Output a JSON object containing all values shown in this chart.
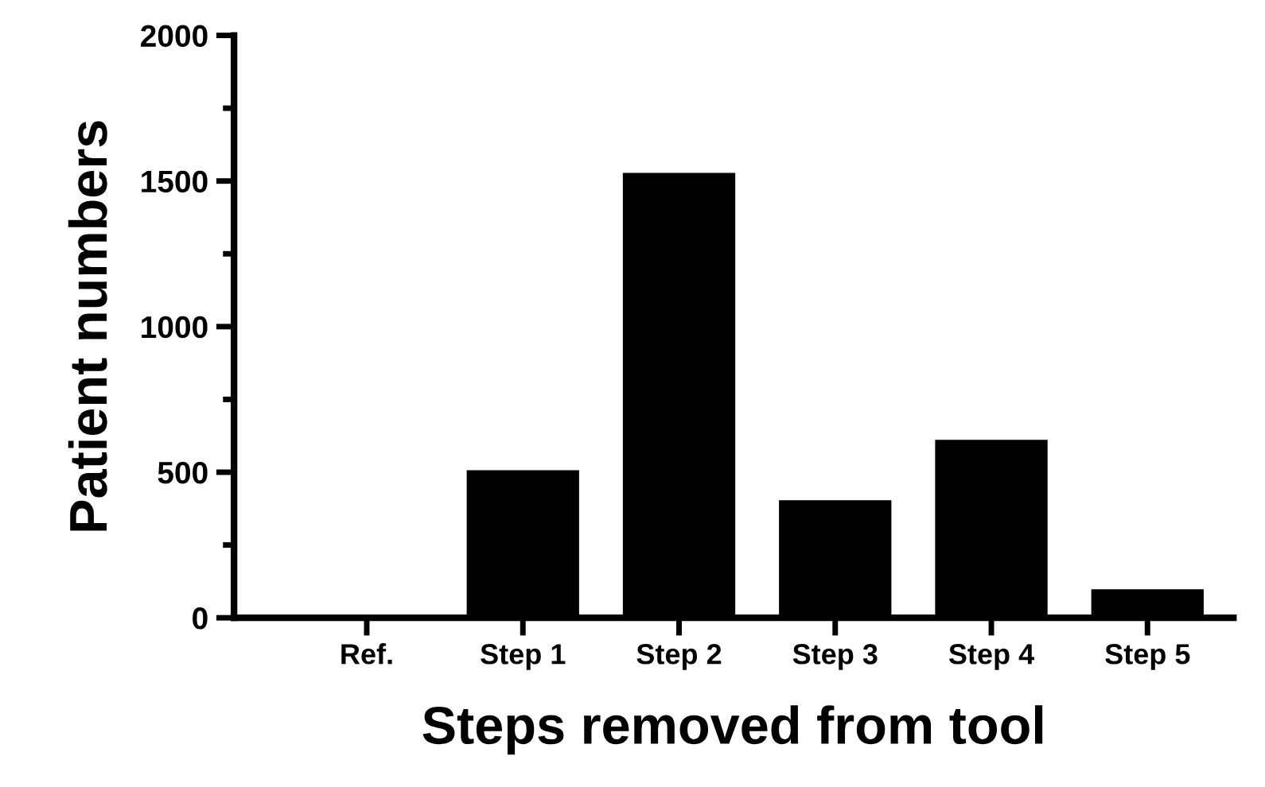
{
  "chart_data": {
    "type": "bar",
    "xlabel": "Steps removed from tool",
    "ylabel": "Patient numbers",
    "categories": [
      "Ref.",
      "Step 1",
      "Step 2",
      "Step 3",
      "Step 4",
      "Step 5"
    ],
    "values": [
      0,
      507,
      1528,
      404,
      611,
      98
    ],
    "color": "#000000",
    "ylim": [
      0,
      2000
    ],
    "yticks": [
      0,
      500,
      1000,
      1500,
      2000
    ],
    "grid": false
  }
}
